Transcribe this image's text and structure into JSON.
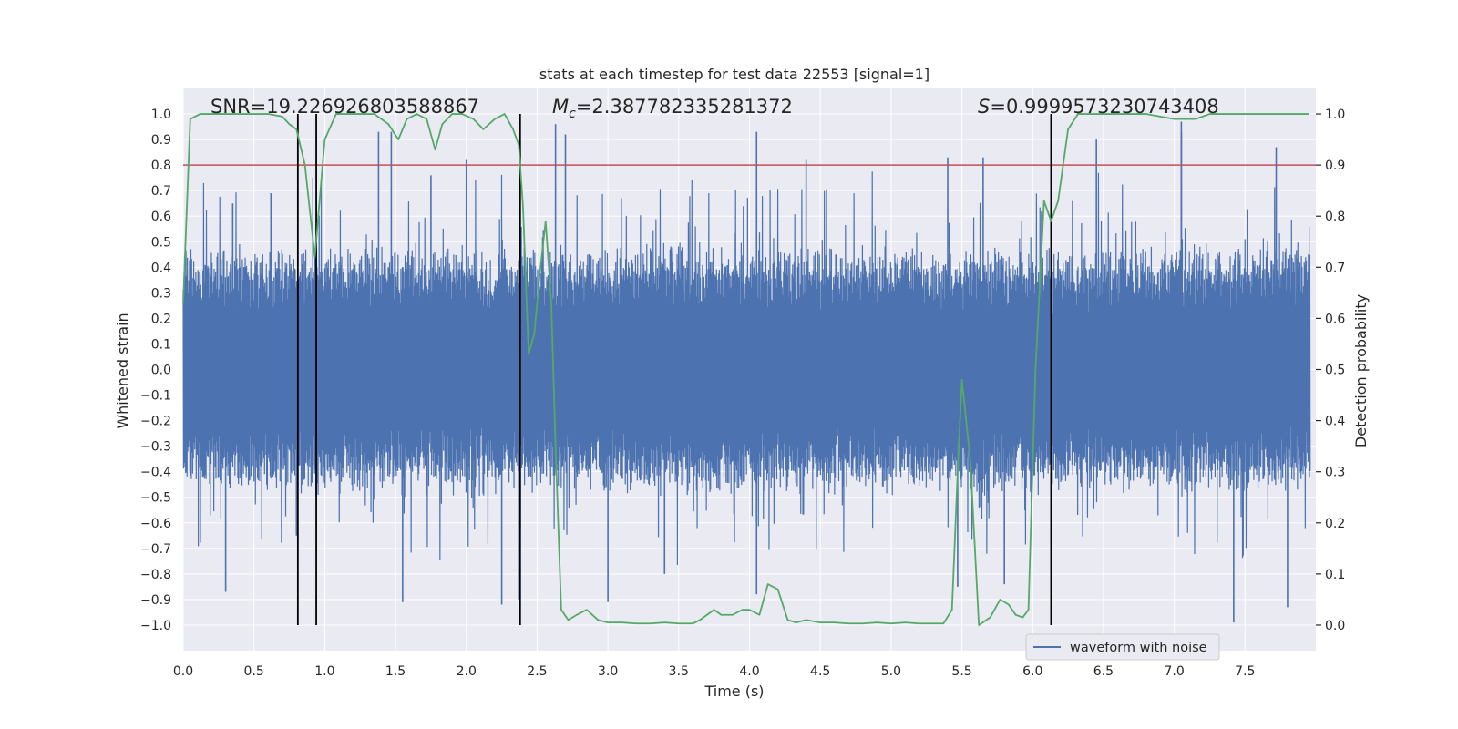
{
  "chart_data": {
    "type": "line",
    "title": "stats at each timestep for test data 22553 [signal=1]",
    "xlabel": "Time (s)",
    "ylabel_left": "Whitened strain",
    "ylabel_right": "Detection probability",
    "xlim": [
      0.0,
      8.0
    ],
    "ylim_left": [
      -1.1,
      1.1
    ],
    "ylim_right": [
      -0.05,
      1.05
    ],
    "xticks": [
      0.0,
      0.5,
      1.0,
      1.5,
      2.0,
      2.5,
      3.0,
      3.5,
      4.0,
      4.5,
      5.0,
      5.5,
      6.0,
      6.5,
      7.0,
      7.5
    ],
    "xtick_labels": [
      "0.0",
      "0.5",
      "1.0",
      "1.5",
      "2.0",
      "2.5",
      "3.0",
      "3.5",
      "4.0",
      "4.5",
      "5.0",
      "5.5",
      "6.0",
      "6.5",
      "7.0",
      "7.5"
    ],
    "yticks_left": [
      1.0,
      0.9,
      0.8,
      0.7,
      0.6,
      0.5,
      0.4,
      0.3,
      0.2,
      0.1,
      0.0,
      -0.1,
      -0.2,
      -0.3,
      -0.4,
      -0.5,
      -0.6,
      -0.7,
      -0.8,
      -0.9,
      -1.0
    ],
    "ytick_labels_left": [
      "1.0",
      "0.9",
      "0.8",
      "0.7",
      "0.6",
      "0.5",
      "0.4",
      "0.3",
      "0.2",
      "0.1",
      "0.0",
      "−0.1",
      "−0.2",
      "−0.3",
      "−0.4",
      "−0.5",
      "−0.6",
      "−0.7",
      "−0.8",
      "−0.9",
      "−1.0"
    ],
    "yticks_right": [
      1.0,
      0.9,
      0.8,
      0.7,
      0.6,
      0.5,
      0.4,
      0.3,
      0.2,
      0.1,
      0.0
    ],
    "ytick_labels_right": [
      "1.0",
      "0.9",
      "0.8",
      "0.7",
      "0.6",
      "0.5",
      "0.4",
      "0.3",
      "0.2",
      "0.1",
      "0.0"
    ],
    "grid": true,
    "threshold_line": {
      "y_right": 0.9,
      "color": "#c44e52"
    },
    "vertical_markers_x": [
      0.81,
      0.94,
      2.38,
      6.13
    ],
    "waveform": {
      "name": "waveform with noise",
      "color": "#4c72b0",
      "approx_envelope": {
        "typical_peak": 0.5,
        "max_peak": 0.97,
        "min_peak": -0.99
      },
      "spikes": [
        [
          0.3,
          -0.87
        ],
        [
          0.35,
          0.65
        ],
        [
          0.62,
          0.69
        ],
        [
          0.8,
          -0.65
        ],
        [
          1.38,
          0.93
        ],
        [
          1.47,
          0.93
        ],
        [
          1.55,
          -0.91
        ],
        [
          1.75,
          0.76
        ],
        [
          2.0,
          0.82
        ],
        [
          2.25,
          -0.92
        ],
        [
          2.37,
          -0.9
        ],
        [
          2.63,
          0.96
        ],
        [
          2.7,
          0.92
        ],
        [
          3.0,
          -0.91
        ],
        [
          3.4,
          -0.8
        ],
        [
          4.05,
          0.93
        ],
        [
          4.05,
          -0.88
        ],
        [
          4.4,
          0.82
        ],
        [
          5.4,
          0.83
        ],
        [
          5.47,
          -0.85
        ],
        [
          5.65,
          0.83
        ],
        [
          5.8,
          -0.84
        ],
        [
          6.45,
          0.9
        ],
        [
          7.05,
          0.97
        ],
        [
          7.05,
          0.93
        ],
        [
          7.42,
          -0.99
        ],
        [
          7.72,
          0.87
        ],
        [
          7.8,
          -0.93
        ]
      ]
    },
    "detection_probability": {
      "color": "#55a868",
      "x": [
        0.0,
        0.05,
        0.12,
        0.2,
        0.3,
        0.4,
        0.5,
        0.6,
        0.7,
        0.75,
        0.8,
        0.86,
        0.93,
        1.0,
        1.08,
        1.15,
        1.25,
        1.35,
        1.45,
        1.52,
        1.58,
        1.65,
        1.72,
        1.78,
        1.83,
        1.9,
        1.97,
        2.05,
        2.12,
        2.2,
        2.27,
        2.33,
        2.37,
        2.4,
        2.44,
        2.48,
        2.52,
        2.56,
        2.6,
        2.63,
        2.67,
        2.72,
        2.78,
        2.85,
        2.93,
        3.0,
        3.1,
        3.2,
        3.3,
        3.4,
        3.5,
        3.6,
        3.65,
        3.75,
        3.8,
        3.88,
        3.95,
        4.0,
        4.07,
        4.13,
        4.2,
        4.27,
        4.33,
        4.4,
        4.5,
        4.6,
        4.7,
        4.8,
        4.9,
        5.0,
        5.1,
        5.2,
        5.3,
        5.37,
        5.43,
        5.47,
        5.5,
        5.56,
        5.62,
        5.7,
        5.77,
        5.83,
        5.88,
        5.93,
        5.97,
        6.02,
        6.08,
        6.13,
        6.18,
        6.25,
        6.32,
        6.4,
        6.5,
        6.6,
        6.7,
        6.8,
        6.9,
        7.0,
        7.1,
        7.15,
        7.25,
        7.32,
        7.5,
        7.7,
        7.95
      ],
      "y": [
        0.63,
        0.99,
        1.0,
        1.0,
        1.0,
        1.0,
        1.0,
        1.0,
        0.995,
        0.98,
        0.97,
        0.9,
        0.72,
        0.95,
        1.0,
        1.0,
        1.0,
        1.0,
        0.98,
        0.95,
        0.99,
        1.0,
        0.99,
        0.93,
        0.98,
        1.0,
        1.0,
        0.99,
        0.97,
        0.99,
        1.0,
        0.97,
        0.94,
        0.82,
        0.53,
        0.57,
        0.69,
        0.79,
        0.63,
        0.35,
        0.03,
        0.01,
        0.02,
        0.03,
        0.01,
        0.005,
        0.005,
        0.003,
        0.003,
        0.005,
        0.003,
        0.003,
        0.01,
        0.03,
        0.02,
        0.02,
        0.03,
        0.03,
        0.02,
        0.08,
        0.07,
        0.01,
        0.005,
        0.01,
        0.005,
        0.005,
        0.003,
        0.003,
        0.005,
        0.003,
        0.005,
        0.003,
        0.003,
        0.003,
        0.03,
        0.3,
        0.48,
        0.32,
        0.0,
        0.015,
        0.05,
        0.04,
        0.02,
        0.015,
        0.03,
        0.5,
        0.83,
        0.79,
        0.83,
        0.97,
        1.0,
        1.0,
        1.0,
        1.0,
        1.0,
        1.0,
        0.995,
        0.99,
        0.99,
        0.99,
        1.0,
        1.0,
        1.0,
        1.0,
        1.0
      ]
    },
    "annotations": {
      "snr": "SNR=19.226926803588867",
      "mc_prefix": "M",
      "mc_sub": "c",
      "mc_value": "=2.387782335281372",
      "s_prefix": "S",
      "s_value": "=0.9999573230743408"
    },
    "legend": {
      "placement": "lower-center",
      "entries": [
        "waveform with noise"
      ]
    }
  }
}
